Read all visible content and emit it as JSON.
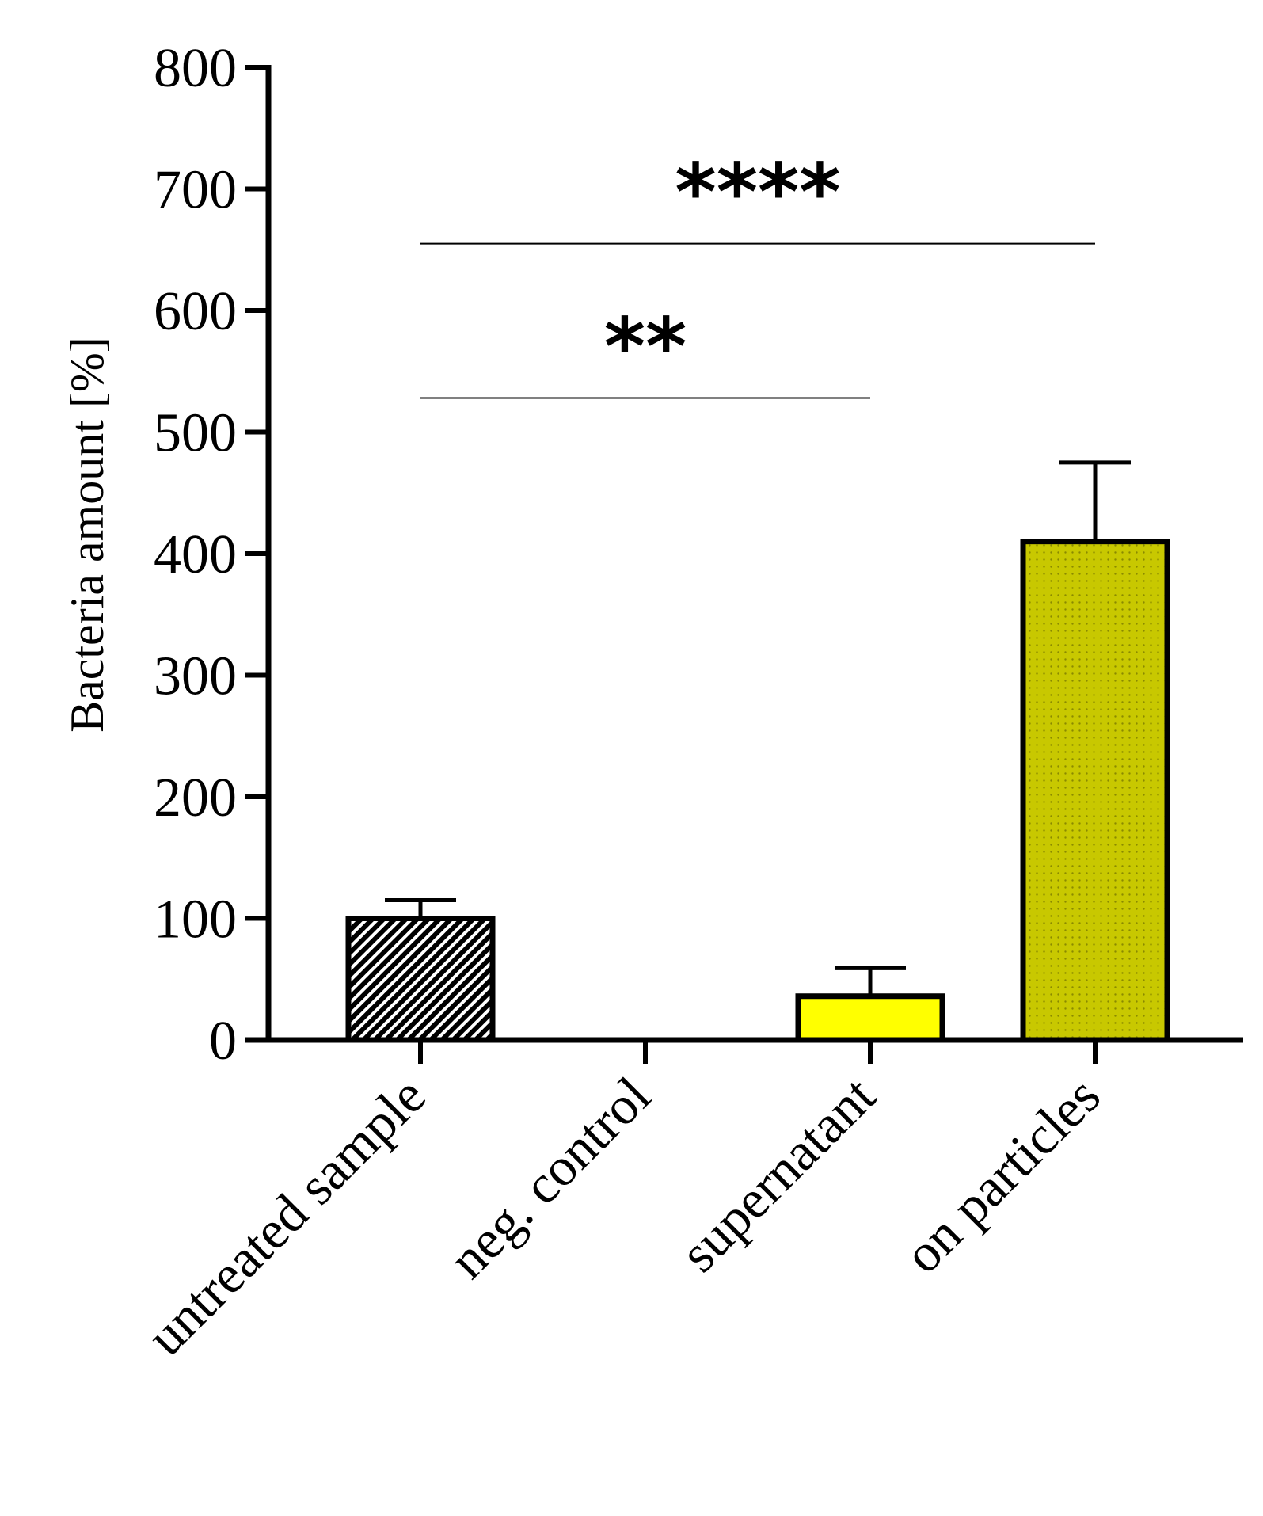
{
  "chart_data": {
    "type": "bar",
    "title": "",
    "xlabel": "",
    "ylabel": "Bacteria amount [%]",
    "ylim": [
      0,
      800
    ],
    "yticks": [
      "0",
      "100",
      "200",
      "300",
      "400",
      "500",
      "600",
      "700",
      "800"
    ],
    "categories": [
      "untreated sample",
      "neg. control",
      "supernatant",
      "on particles"
    ],
    "values": [
      100,
      0,
      36,
      410
    ],
    "errors": [
      15,
      0,
      23,
      65
    ],
    "fills": [
      "hatched",
      "none",
      "#ffff00",
      "#c8c800"
    ],
    "grid": false,
    "significance": [
      {
        "from": 0,
        "to": 2,
        "label": "**",
        "level": 528
      },
      {
        "from": 0,
        "to": 3,
        "label": "****",
        "level": 655
      }
    ]
  },
  "colors": {
    "axis": "#000000",
    "supernatant_fill": "#ffff00",
    "particles_fill": "#c8c800",
    "particles_dot": "#8a8a00"
  }
}
